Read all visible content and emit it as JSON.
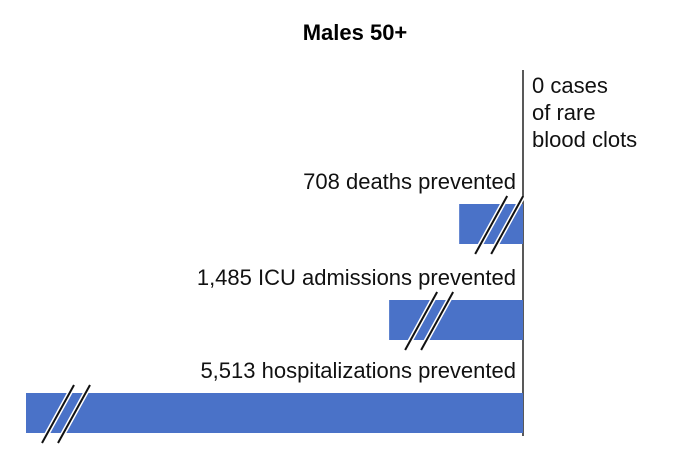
{
  "chart_data": {
    "type": "bar",
    "orientation": "horizontal",
    "title": "Males 50+",
    "values": [
      0,
      708,
      1485,
      5513
    ],
    "value_labels": [
      "0 cases\nof rare\nblood clots",
      "708 deaths prevented",
      "1,485 ICU admissions prevented",
      "5,513 hospitalizations prevented"
    ],
    "color": "#4a72c8",
    "xlim": [
      0,
      5513
    ]
  }
}
